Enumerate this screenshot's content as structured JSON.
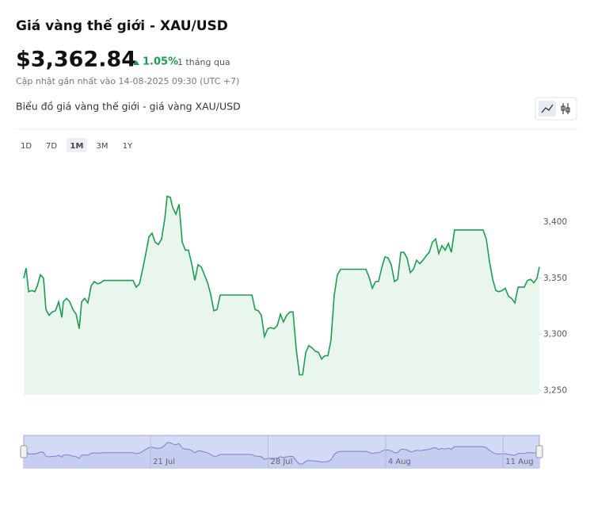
{
  "header": {
    "title": "Giá vàng thế giới - XAU/USD",
    "price": "$3,362.84",
    "change": "1.05%",
    "period": "1 tháng qua",
    "updated": "Cập nhật gần nhất vào 14-08-2025 09:30 (UTC +7)",
    "chart_heading": "Biểu đồ giá vàng thế giới - giá vàng XAU/USD",
    "ranges": [
      "1D",
      "7D",
      "1M",
      "3M",
      "1Y"
    ]
  },
  "chart_data": {
    "type": "line",
    "color": "#1a9e50",
    "fill": "#e8f6ed",
    "x": [
      13.45,
      13.59,
      13.74,
      13.92,
      14.11,
      14.25,
      14.44,
      14.63,
      14.77,
      14.96,
      15.15,
      15.34,
      15.53,
      15.72,
      15.81,
      16.0,
      16.19,
      16.38,
      16.57,
      16.75,
      16.9,
      17.08,
      17.27,
      17.46,
      17.65,
      17.84,
      18.03,
      18.22,
      19.96,
      20.15,
      20.34,
      20.53,
      20.72,
      20.91,
      21.09,
      21.28,
      21.47,
      21.66,
      21.85,
      21.99,
      22.18,
      22.32,
      22.51,
      22.7,
      22.89,
      23.08,
      23.26,
      23.45,
      23.64,
      23.83,
      24.02,
      24.21,
      24.4,
      24.58,
      24.77,
      24.96,
      25.15,
      27.04,
      27.23,
      27.42,
      27.6,
      27.79,
      27.98,
      28.17,
      28.36,
      28.55,
      28.74,
      28.92,
      29.11,
      29.3,
      29.49,
      29.68,
      29.87,
      30.06,
      30.25,
      30.43,
      30.62,
      30.81,
      31.0,
      31.19,
      31.38,
      31.57,
      31.75,
      31.94,
      32.13,
      32.32,
      33.83,
      34.02,
      34.21,
      34.4,
      34.58,
      34.77,
      34.96,
      35.15,
      35.34,
      35.53,
      35.72,
      35.91,
      36.09,
      36.28,
      36.47,
      36.66,
      36.85,
      37.04,
      37.23,
      37.42,
      37.6,
      37.79,
      37.98,
      38.17,
      38.36,
      38.55,
      38.74,
      38.92,
      39.11,
      39.3,
      40.81,
      41.0,
      41.19,
      41.38,
      41.57,
      41.75,
      41.94,
      42.13,
      42.32,
      42.51,
      42.7,
      42.89,
      43.08,
      43.26,
      43.45,
      43.64,
      43.83,
      44.02,
      44.16
    ],
    "values": [
      3350,
      3359,
      3338,
      3339,
      3338,
      3343,
      3353,
      3350,
      3322,
      3317,
      3320,
      3321,
      3329,
      3315,
      3329,
      3332,
      3329,
      3322,
      3318,
      3305,
      3329,
      3332,
      3328,
      3343,
      3347,
      3345,
      3346,
      3348,
      3348,
      3342,
      3345,
      3358,
      3372,
      3387,
      3390,
      3382,
      3380,
      3385,
      3403,
      3423,
      3422,
      3413,
      3407,
      3416,
      3382,
      3375,
      3375,
      3363,
      3348,
      3362,
      3360,
      3353,
      3346,
      3336,
      3321,
      3322,
      3335,
      3335,
      3322,
      3321,
      3317,
      3298,
      3305,
      3306,
      3305,
      3308,
      3318,
      3311,
      3317,
      3320,
      3320,
      3287,
      3264,
      3264,
      3284,
      3290,
      3288,
      3285,
      3284,
      3278,
      3281,
      3281,
      3295,
      3335,
      3353,
      3358,
      3358,
      3351,
      3341,
      3347,
      3347,
      3359,
      3369,
      3368,
      3362,
      3347,
      3349,
      3373,
      3373,
      3368,
      3355,
      3358,
      3366,
      3363,
      3366,
      3370,
      3373,
      3382,
      3385,
      3372,
      3379,
      3375,
      3381,
      3373,
      3393,
      3393,
      3393,
      3385,
      3365,
      3349,
      3339,
      3338,
      3339,
      3341,
      3334,
      3332,
      3328,
      3342,
      3342,
      3342,
      3348,
      3349,
      3346,
      3350,
      3360
    ],
    "xlim": [
      13.45,
      44.16
    ],
    "xticks": [
      {
        "value": 21,
        "label": "21 Jul"
      },
      {
        "value": 28,
        "label": "28 Jul"
      },
      {
        "value": 35,
        "label": "4 Aug"
      },
      {
        "value": 42,
        "label": "11 Aug"
      }
    ],
    "ylim": [
      3246,
      3453
    ],
    "yticks": [
      {
        "value": 3250,
        "label": "3,250"
      },
      {
        "value": 3300,
        "label": "3,300"
      },
      {
        "value": 3350,
        "label": "3,350"
      },
      {
        "value": 3400,
        "label": "3,400"
      }
    ]
  }
}
